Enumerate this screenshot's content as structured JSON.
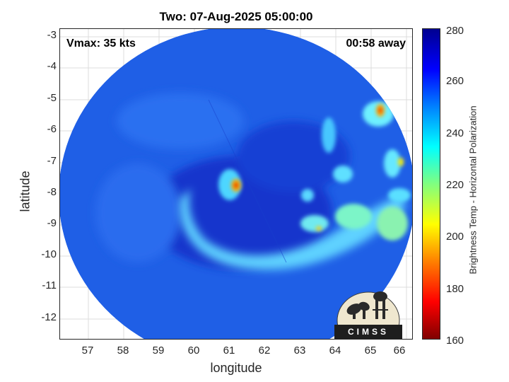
{
  "title": "Two: 07-Aug-2025 05:00:00",
  "vmax_label": "Vmax: 35 kts",
  "time_away": "00:58 away",
  "logo_text": "CIMSS",
  "xlabel": "longitude",
  "ylabel": "latitude",
  "colorbar": {
    "label": "Brightness Temp - Horizontal Polarization",
    "ticks": [
      "280",
      "260",
      "240",
      "220",
      "200",
      "180",
      "160"
    ],
    "range": [
      160,
      280
    ],
    "colormap": "jet"
  },
  "map": {
    "xlim": [
      56.25,
      66.25
    ],
    "ylim": [
      -12.75,
      -2.65
    ],
    "xticks": [
      "57",
      "58",
      "59",
      "60",
      "61",
      "62",
      "63",
      "64",
      "65",
      "66"
    ],
    "yticks": [
      "-3",
      "-4",
      "-5",
      "-6",
      "-7",
      "-8",
      "-9",
      "-10",
      "-11",
      "-12"
    ],
    "grid": true,
    "swath_center": [
      61.3,
      -7.9
    ],
    "storm_center": [
      61.3,
      -7.7
    ],
    "colors": {
      "background_cold": "#1c5ae8",
      "dark_band": "#0f2fc8",
      "rain_band": "#4dd6ff",
      "convection_core": "#ff1a00",
      "frame": "#262626"
    }
  }
}
